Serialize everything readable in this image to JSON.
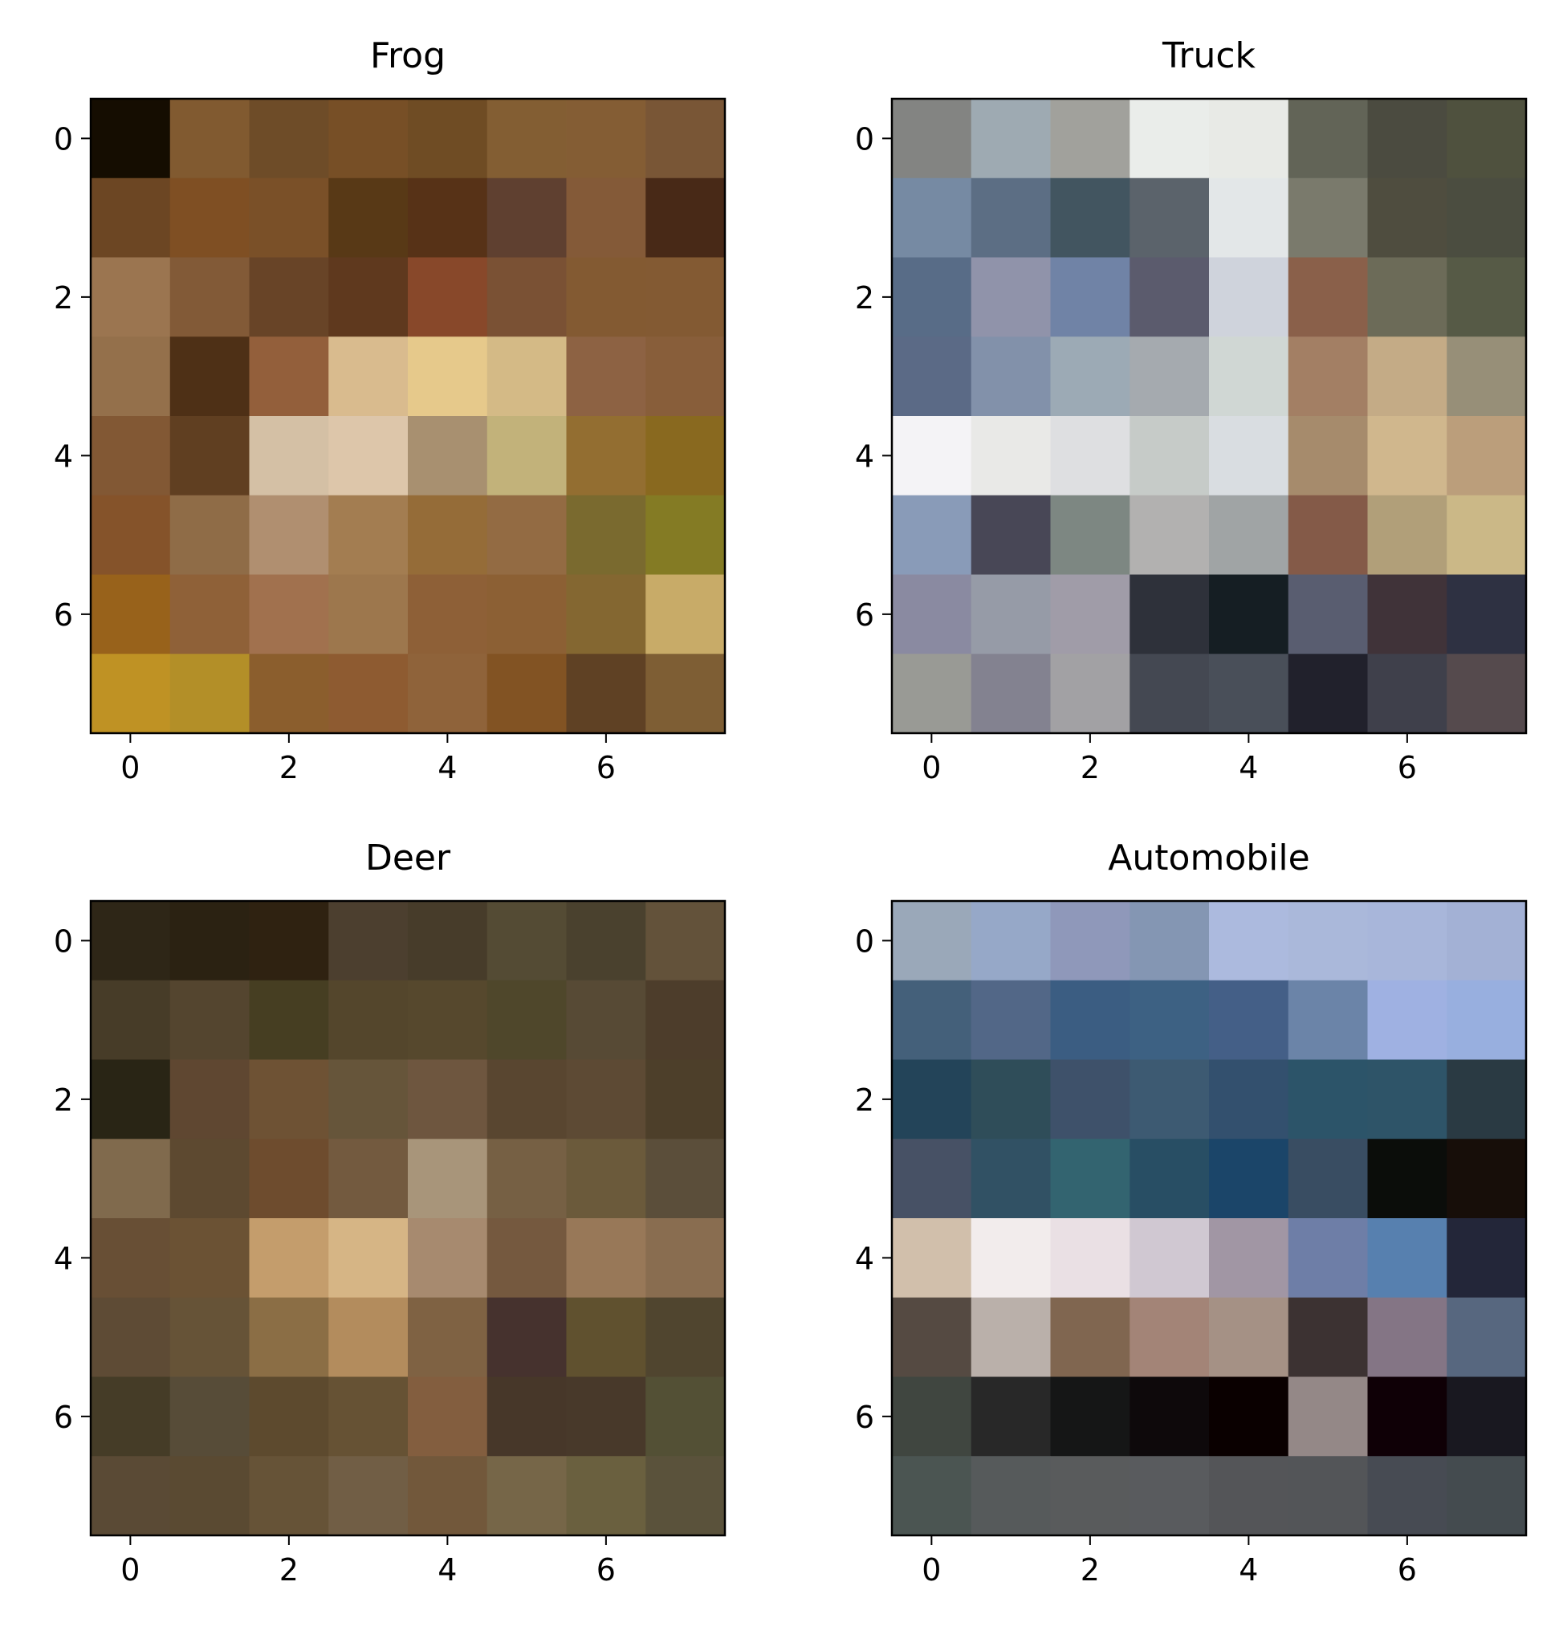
{
  "figure": {
    "panels": [
      {
        "title": "Frog"
      },
      {
        "title": "Truck"
      },
      {
        "title": "Deer"
      },
      {
        "title": "Automobile"
      }
    ]
  },
  "chart_data": [
    {
      "type": "heatmap",
      "title": "Frog",
      "xticks": [
        0,
        2,
        4,
        6
      ],
      "yticks": [
        0,
        2,
        4,
        6
      ],
      "xlim": [
        -0.5,
        7.5
      ],
      "ylim": [
        7.5,
        -0.5
      ],
      "pixels": [
        [
          "#150d01",
          "#815a30",
          "#6e4c28",
          "#774f26",
          "#6f4c24",
          "#835e33",
          "#845d34",
          "#795636"
        ],
        [
          "#6c4623",
          "#7f4f23",
          "#7a5028",
          "#583916",
          "#573217",
          "#5f4030",
          "#845a38",
          "#482917"
        ],
        [
          "#9b7550",
          "#825a37",
          "#684427",
          "#5f391e",
          "#88482a",
          "#7a5134",
          "#835a32",
          "#835a33"
        ],
        [
          "#94704b",
          "#4e3016",
          "#935f3b",
          "#d9bb8e",
          "#e6c98b",
          "#d4ba86",
          "#8d6243",
          "#885e3a"
        ],
        [
          "#825834",
          "#603f21",
          "#d4c0a5",
          "#ddc6aa",
          "#a89070",
          "#c2b27a",
          "#936e31",
          "#89691f"
        ],
        [
          "#85532a",
          "#8f6c47",
          "#b08f70",
          "#a37d51",
          "#956c38",
          "#936b43",
          "#7a6a2f",
          "#847b24"
        ],
        [
          "#98621b",
          "#8f6138",
          "#a1714e",
          "#9d774d",
          "#8e6037",
          "#8c6034",
          "#846731",
          "#c8ab68"
        ],
        [
          "#bf9224",
          "#b38f28",
          "#8b5e2d",
          "#8e5b31",
          "#8f633a",
          "#825323",
          "#5f4124",
          "#7e5e34"
        ]
      ]
    },
    {
      "type": "heatmap",
      "title": "Truck",
      "xticks": [
        0,
        2,
        4,
        6
      ],
      "yticks": [
        0,
        2,
        4,
        6
      ],
      "xlim": [
        -0.5,
        7.5
      ],
      "ylim": [
        7.5,
        -0.5
      ],
      "pixels": [
        [
          "#838482",
          "#9eaab2",
          "#a1a19c",
          "#eaedea",
          "#e8eae6",
          "#626457",
          "#4b4b40",
          "#4f513e"
        ],
        [
          "#768aa3",
          "#5c6e84",
          "#425560",
          "#5b636b",
          "#e3e7e8",
          "#7a7a6c",
          "#4f4d3f",
          "#4b4d40"
        ],
        [
          "#586c87",
          "#9093aa",
          "#7083a6",
          "#5b5b6d",
          "#cfd3dc",
          "#8a604a",
          "#6c6b58",
          "#565a46"
        ],
        [
          "#5b6a86",
          "#8291aa",
          "#9caab5",
          "#a5aaaf",
          "#d0d7d4",
          "#a37f64",
          "#c4ab86",
          "#978f78"
        ],
        [
          "#f4f3f6",
          "#e9e9e7",
          "#dedfe1",
          "#c6cbc8",
          "#d9dde1",
          "#a68b6c",
          "#d0b78d",
          "#bb9e7b"
        ],
        [
          "#899bb8",
          "#484756",
          "#7d8782",
          "#b2b1b0",
          "#a0a4a5",
          "#845a48",
          "#b19f79",
          "#cbb887"
        ],
        [
          "#8a8aa1",
          "#969ba7",
          "#a09ca8",
          "#2e313a",
          "#151e23",
          "#595d70",
          "#403339",
          "#2e3142"
        ],
        [
          "#999a95",
          "#838290",
          "#a2a1a4",
          "#444852",
          "#494f59",
          "#21212c",
          "#3f404b",
          "#554a4d"
        ]
      ]
    },
    {
      "type": "heatmap",
      "title": "Deer",
      "xticks": [
        0,
        2,
        4,
        6
      ],
      "yticks": [
        0,
        2,
        4,
        6
      ],
      "xlim": [
        -0.5,
        7.5
      ],
      "ylim": [
        7.5,
        -0.5
      ],
      "pixels": [
        [
          "#2e2617",
          "#2b2212",
          "#2f2211",
          "#4c3f2f",
          "#473c2a",
          "#544b34",
          "#4a412e",
          "#63523a"
        ],
        [
          "#473c28",
          "#54452f",
          "#463e22",
          "#54462c",
          "#56482d",
          "#4f472b",
          "#574a35",
          "#4d3d2b"
        ],
        [
          "#292515",
          "#5f4731",
          "#6e5234",
          "#66553a",
          "#6e563f",
          "#594630",
          "#5d4a34",
          "#4d3f2a"
        ],
        [
          "#806a4d",
          "#5d4930",
          "#6e4c2e",
          "#735a3f",
          "#a8957a",
          "#766044",
          "#6b5a3b",
          "#5b4e3a"
        ],
        [
          "#684f35",
          "#6b5234",
          "#c49d6c",
          "#d6b585",
          "#a78a6f",
          "#75593f",
          "#987858",
          "#896d50"
        ],
        [
          "#5e4b35",
          "#665337",
          "#8b6e45",
          "#b38c5d",
          "#7f6243",
          "#46322e",
          "#60512f",
          "#50452f"
        ],
        [
          "#453c27",
          "#574c38",
          "#5d4a2e",
          "#665234",
          "#835e3f",
          "#473729",
          "#48392a",
          "#535035"
        ],
        [
          "#5a4a35",
          "#5a4a32",
          "#665337",
          "#715e45",
          "#72583b",
          "#766648",
          "#6a603f",
          "#5a523b"
        ]
      ]
    },
    {
      "type": "heatmap",
      "title": "Automobile",
      "xticks": [
        0,
        2,
        4,
        6
      ],
      "yticks": [
        0,
        2,
        4,
        6
      ],
      "xlim": [
        -0.5,
        7.5
      ],
      "ylim": [
        7.5,
        -0.5
      ],
      "pixels": [
        [
          "#9aa8b9",
          "#96a8c8",
          "#8f98ba",
          "#8496b3",
          "#acbade",
          "#aab8da",
          "#a8b6da",
          "#a3b1d5"
        ],
        [
          "#44607a",
          "#526787",
          "#3b5d82",
          "#3d6183",
          "#445f87",
          "#6b84a8",
          "#9fb1e2",
          "#98afdf"
        ],
        [
          "#234459",
          "#2f4d59",
          "#3e516a",
          "#3d5a72",
          "#33506e",
          "#2c5469",
          "#2e5468",
          "#2a3a43"
        ],
        [
          "#475165",
          "#315164",
          "#336470",
          "#284e64",
          "#1b4569",
          "#394d62",
          "#0b0d0a",
          "#170e09"
        ],
        [
          "#d1bfab",
          "#f2ecec",
          "#eae0e4",
          "#d0c8d2",
          "#a196a4",
          "#6e7ea7",
          "#5780af",
          "#232639"
        ],
        [
          "#554a42",
          "#bab0aa",
          "#806650",
          "#a38477",
          "#a59185",
          "#3c3232",
          "#847585",
          "#57677f"
        ],
        [
          "#404640",
          "#282828",
          "#151616",
          "#0e090b",
          "#0a0000",
          "#948887",
          "#0f0006",
          "#191820"
        ],
        [
          "#4b5552",
          "#565a5b",
          "#595b5c",
          "#595b5e",
          "#545558",
          "#535558",
          "#474b53",
          "#444b4f"
        ]
      ]
    }
  ]
}
